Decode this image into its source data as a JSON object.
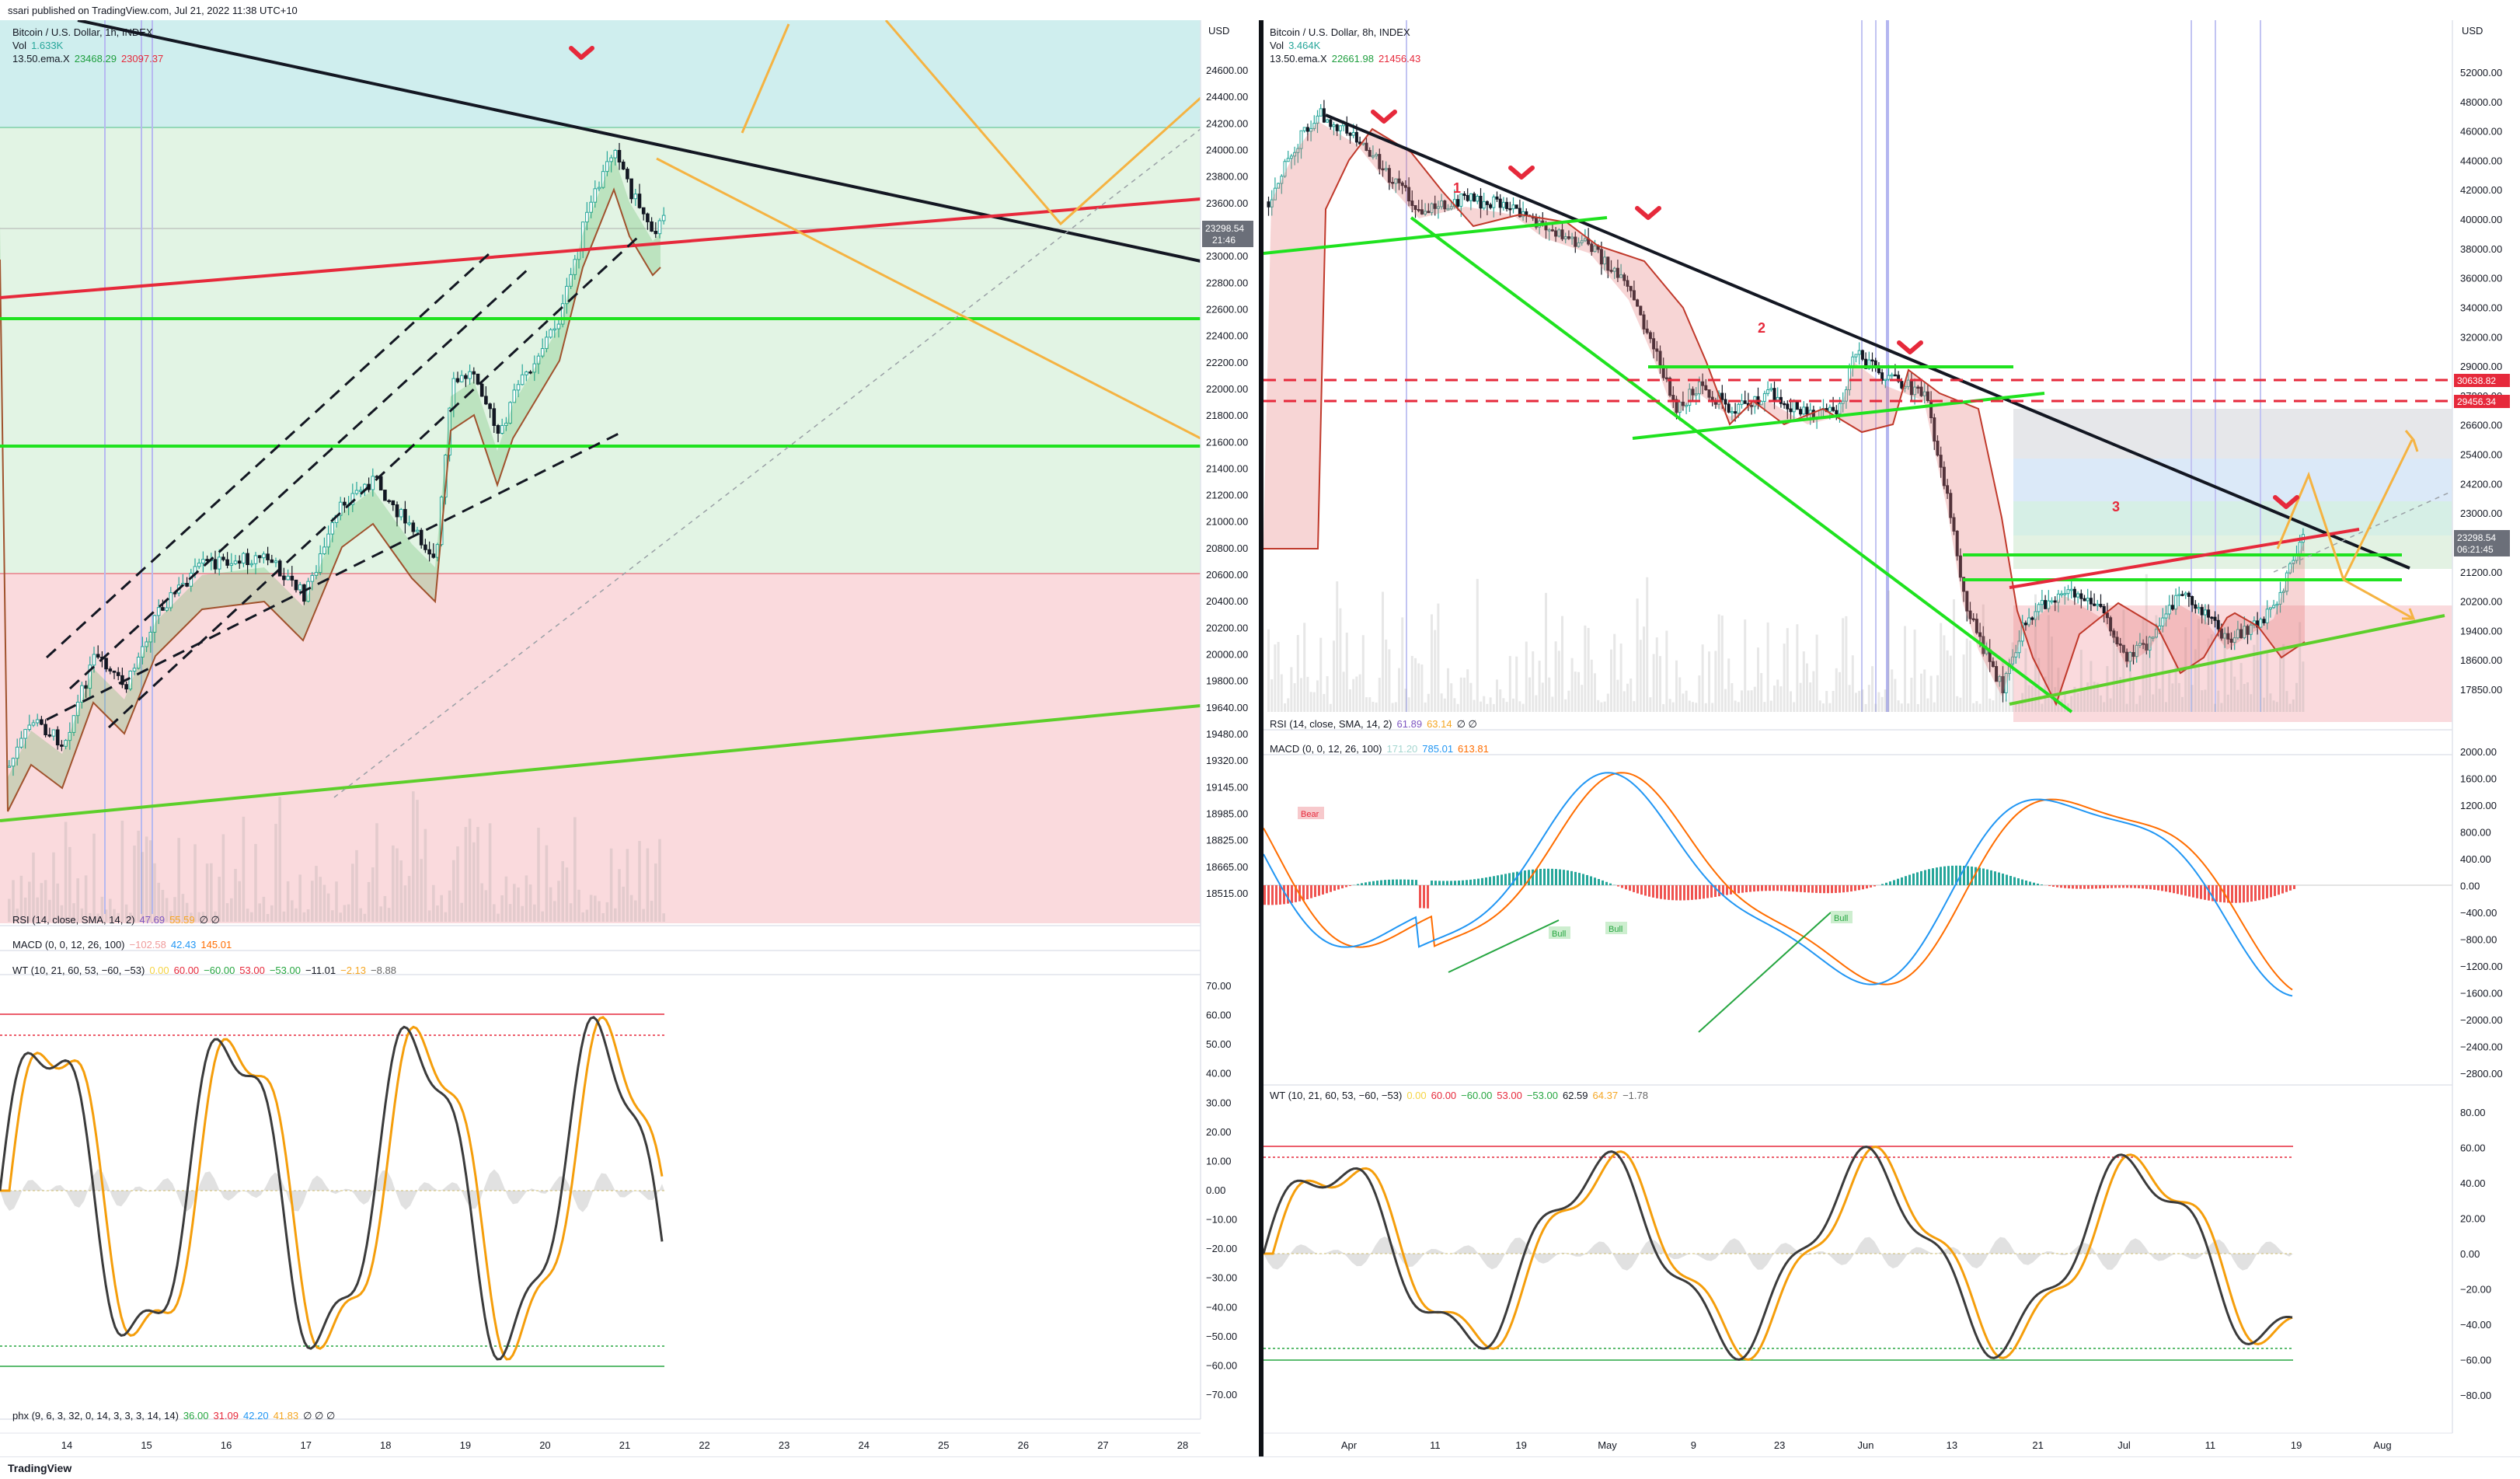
{
  "header": {
    "published": "ssari published on TradingView.com, Jul 21, 2022 11:38 UTC+10"
  },
  "footer": {
    "brand": "TradingView"
  },
  "colors": {
    "up": "#26a69a",
    "down": "#ef5350",
    "green_line": "#1fe21f",
    "red_line": "#e6293b",
    "orange": "#f5b342",
    "black": "#131722",
    "bg_green": "#cfeede",
    "bg_red": "#f9d3d6"
  },
  "left_pane": {
    "symbol": "Bitcoin / U.S. Dollar, 1h, INDEX",
    "vol_label": "Vol",
    "vol_value": "1.633K",
    "ema_label": "13.50.ema.X",
    "ema_v1": "23468.29",
    "ema_v2": "23097.37",
    "currency": "USD",
    "price_tag": "23298.54",
    "price_time": "21:46",
    "rsi_label": "RSI (14, close, SMA, 14, 2)",
    "rsi_v1": "47.69",
    "rsi_v2": "55.59",
    "rsi_v3": "∅ ∅",
    "macd_label": "MACD (0, 0, 12, 26, 100)",
    "macd_v1": "−102.58",
    "macd_v2": "42.43",
    "macd_v3": "145.01",
    "wt_label": "WT (10, 21, 60, 53, −60, −53)",
    "wt_v1": "0.00",
    "wt_v2": "60.00",
    "wt_v3": "−60.00",
    "wt_v4": "53.00",
    "wt_v5": "−53.00",
    "wt_v6": "−11.01",
    "wt_v7": "−2.13",
    "wt_v8": "−8.88",
    "phx_label": "phx (9, 6, 3, 32, 0, 14, 3, 3, 3, 14, 14)",
    "phx_v1": "36.00",
    "phx_v2": "31.09",
    "phx_v3": "42.20",
    "phx_v4": "41.83",
    "phx_v5": "∅ ∅ ∅",
    "time_ticks": [
      "14",
      "15",
      "16",
      "17",
      "18",
      "19",
      "20",
      "21",
      "22",
      "23",
      "24",
      "25",
      "26",
      "27",
      "28"
    ],
    "price_ticks": [
      "24600.00",
      "24400.00",
      "24200.00",
      "24000.00",
      "23800.00",
      "23600.00",
      "23400.00",
      "23000.00",
      "22800.00",
      "22600.00",
      "22400.00",
      "22200.00",
      "22000.00",
      "21800.00",
      "21600.00",
      "21400.00",
      "21200.00",
      "21000.00",
      "20800.00",
      "20600.00",
      "20400.00",
      "20200.00",
      "20000.00",
      "19800.00",
      "19640.00",
      "19480.00",
      "19320.00",
      "19145.00",
      "18985.00",
      "18825.00",
      "18665.00",
      "18515.00"
    ],
    "wt_ticks": [
      "70.00",
      "60.00",
      "50.00",
      "40.00",
      "30.00",
      "20.00",
      "10.00",
      "0.00",
      "−10.00",
      "−20.00",
      "−30.00",
      "−40.00",
      "−50.00",
      "−60.00",
      "−70.00"
    ]
  },
  "right_pane": {
    "symbol": "Bitcoin / U.S. Dollar, 8h, INDEX",
    "vol_label": "Vol",
    "vol_value": "3.464K",
    "ema_label": "13.50.ema.X",
    "ema_v1": "22661.98",
    "ema_v2": "21456.43",
    "currency": "USD",
    "price_tag": "23298.54",
    "price_time": "06:21:45",
    "tag_red1": "30638.82",
    "tag_red2": "29456.34",
    "rsi_label": "RSI (14, close, SMA, 14, 2)",
    "rsi_v1": "61.89",
    "rsi_v2": "63.14",
    "rsi_v3": "∅ ∅",
    "macd_label": "MACD (0, 0, 12, 26, 100)",
    "macd_v1": "171.20",
    "macd_v2": "785.01",
    "macd_v3": "613.81",
    "wt_label": "WT (10, 21, 60, 53, −60, −53)",
    "wt_v1": "0.00",
    "wt_v2": "60.00",
    "wt_v3": "−60.00",
    "wt_v4": "53.00",
    "wt_v5": "−53.00",
    "wt_v6": "62.59",
    "wt_v7": "64.37",
    "wt_v8": "−1.78",
    "annotations": [
      "1",
      "2",
      "3"
    ],
    "macd_tags": [
      "Bear",
      "Bull",
      "Bull",
      "Bull"
    ],
    "time_ticks": [
      "Apr",
      "11",
      "19",
      "May",
      "9",
      "23",
      "Jun",
      "13",
      "21",
      "Jul",
      "11",
      "19",
      "Aug"
    ],
    "price_ticks": [
      "52000.00",
      "48000.00",
      "46000.00",
      "44000.00",
      "42000.00",
      "40000.00",
      "38000.00",
      "36000.00",
      "34000.00",
      "32000.00",
      "29000.00",
      "27800.00",
      "26600.00",
      "25400.00",
      "24200.00",
      "23000.00",
      "22200.00",
      "21200.00",
      "20200.00",
      "19400.00",
      "18600.00",
      "17850.00"
    ],
    "macd_ticks": [
      "2000.00",
      "1600.00",
      "1200.00",
      "800.00",
      "400.00",
      "0.00",
      "−400.00",
      "−800.00",
      "−1200.00",
      "−1600.00",
      "−2000.00",
      "−2400.00",
      "−2800.00"
    ],
    "wt_ticks": [
      "80.00",
      "60.00",
      "40.00",
      "20.00",
      "0.00",
      "−20.00",
      "−40.00",
      "−60.00",
      "−80.00"
    ]
  },
  "chart_data": [
    {
      "type": "candlestick",
      "title": "Bitcoin / U.S. Dollar, 1h, INDEX",
      "x_range": [
        "Jul 13",
        "Jul 28"
      ],
      "ylim": [
        18515,
        24600
      ],
      "y_scale": "linear",
      "x": [
        "Jul 14",
        "Jul 15",
        "Jul 16",
        "Jul 17",
        "Jul 18",
        "Jul 19",
        "Jul 20",
        "Jul 21"
      ],
      "close": [
        19800,
        20700,
        20900,
        20800,
        21900,
        22200,
        23600,
        23298.54
      ],
      "indicators": [
        "RSI (14, close, SMA, 14, 2)",
        "MACD (0, 0, 12, 26, 100)",
        "WT (10, 21, 60, 53, −60, −53)",
        "phx (9, 6, 3, 32, 0, 14, 3, 3, 3, 14, 14)"
      ],
      "grid": true
    },
    {
      "type": "candlestick",
      "title": "Bitcoin / U.S. Dollar, 8h, INDEX",
      "x_range": [
        "Mar 28",
        "Aug 5"
      ],
      "ylim": [
        17850,
        52000
      ],
      "y_scale": "log",
      "x": [
        "Mar 28",
        "Apr 11",
        "Apr 19",
        "May 1",
        "May 9",
        "May 23",
        "Jun 1",
        "Jun 13",
        "Jun 21",
        "Jul 1",
        "Jul 11",
        "Jul 19"
      ],
      "close": [
        47000,
        42000,
        40000,
        38000,
        31000,
        29500,
        30000,
        22000,
        20500,
        19300,
        20500,
        23298.54
      ],
      "indicators": [
        "RSI (14, close, SMA, 14, 2)",
        "MACD (0, 0, 12, 26, 100)",
        "WT (10, 21, 60, 53, −60, −53)"
      ],
      "grid": true
    }
  ]
}
